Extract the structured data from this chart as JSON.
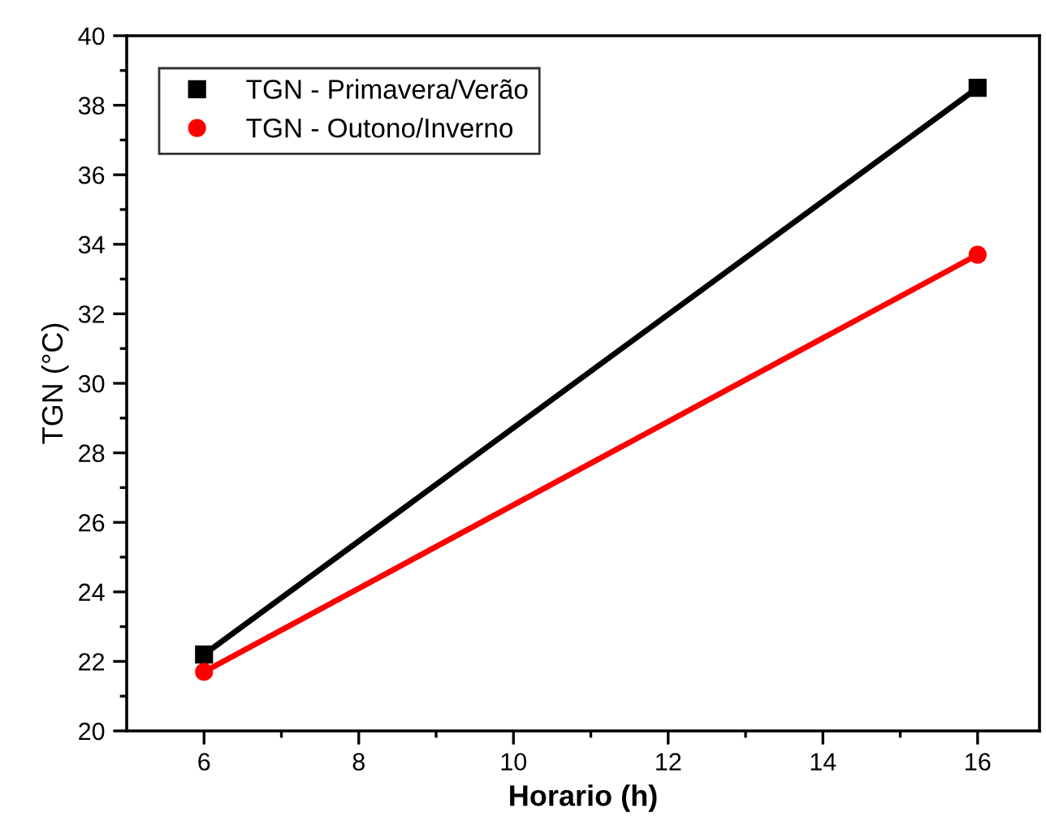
{
  "chart_data": {
    "type": "line",
    "xlabel": "Horario (h)",
    "ylabel": "TGN (°C)",
    "x": [
      6,
      16
    ],
    "series": [
      {
        "name": "TGN - Primavera/Verão",
        "color": "#000000",
        "marker": "square",
        "values": [
          22.2,
          38.5
        ]
      },
      {
        "name": "TGN - Outono/Inverno",
        "color": "#ff0000",
        "marker": "circle",
        "values": [
          21.7,
          33.7
        ]
      }
    ],
    "xlim": [
      5,
      16.8
    ],
    "xticks": [
      6,
      {
        "value": 7,
        "label": null
      },
      8,
      {
        "value": 9,
        "label": null
      },
      10,
      {
        "value": 11,
        "label": null
      },
      12,
      {
        "value": 13,
        "label": null
      },
      14,
      {
        "value": 15,
        "label": null
      },
      16
    ],
    "ylim": [
      20,
      40
    ],
    "yticks": [
      20,
      {
        "value": 21,
        "label": null
      },
      22,
      {
        "value": 23,
        "label": null
      },
      24,
      {
        "value": 25,
        "label": null
      },
      26,
      {
        "value": 27,
        "label": null
      },
      28,
      {
        "value": 29,
        "label": null
      },
      30,
      {
        "value": 31,
        "label": null
      },
      32,
      {
        "value": 33,
        "label": null
      },
      34,
      {
        "value": 35,
        "label": null
      },
      36,
      {
        "value": 37,
        "label": null
      },
      38,
      {
        "value": 39,
        "label": null
      },
      40
    ],
    "grid": false,
    "legend": "top left",
    "line_style": "solid"
  }
}
